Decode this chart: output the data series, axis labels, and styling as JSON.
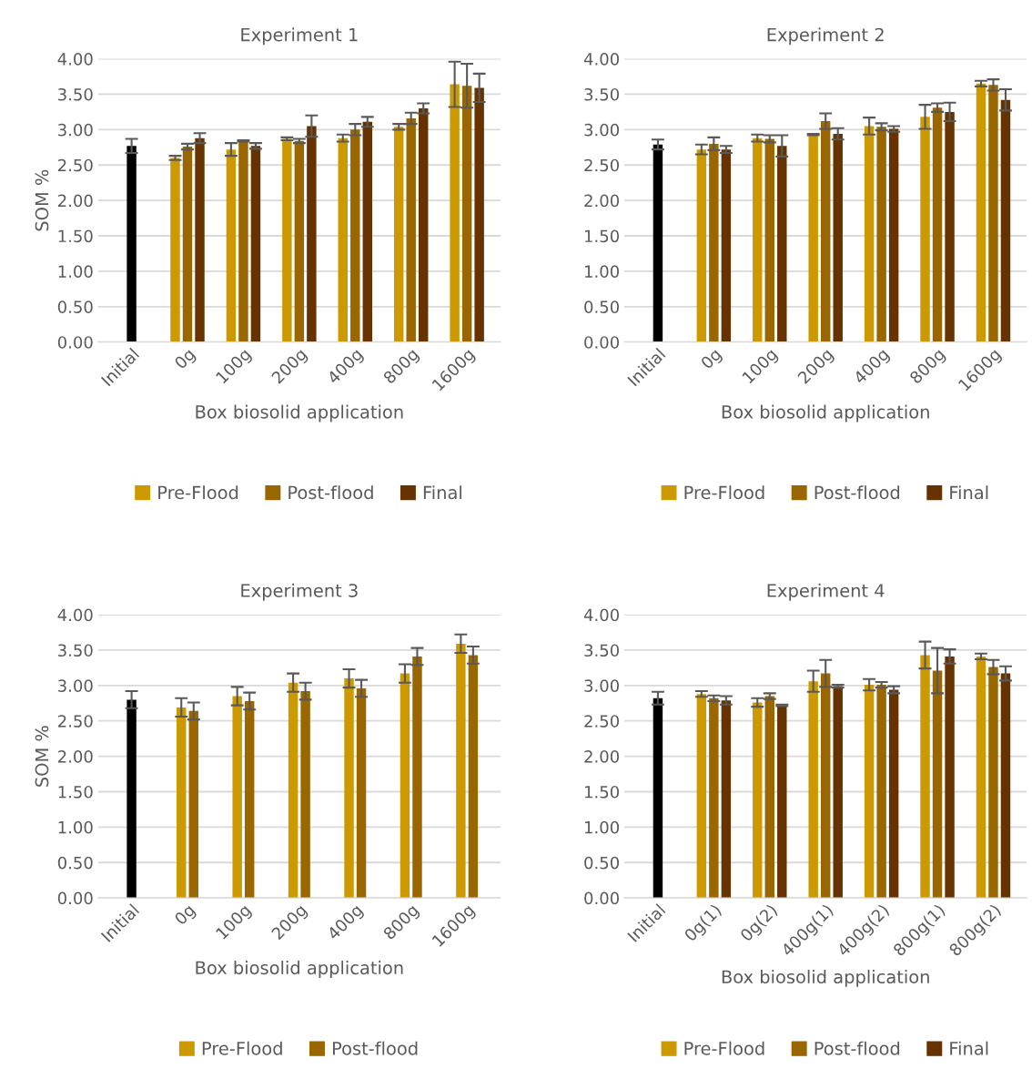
{
  "chart_data": [
    {
      "type": "bar",
      "title": "Experiment 1",
      "xlabel": "Box biosolid application",
      "ylabel": "SOM %",
      "categories": [
        "Initial",
        "0g",
        "100g",
        "200g",
        "400g",
        "800g",
        "1600g"
      ],
      "ylim": [
        0,
        4
      ],
      "yticks": [
        {
          "value": 0,
          "label": "0.00"
        },
        {
          "value": 0.5,
          "label": "0.50"
        },
        {
          "value": 1,
          "label": "1.00"
        },
        {
          "value": 1.5,
          "label": "1.50"
        },
        {
          "value": 2,
          "label": "2.00"
        },
        {
          "value": 2.5,
          "label": "2.50"
        },
        {
          "value": 3,
          "label": "3.00"
        },
        {
          "value": 3.5,
          "label": "3.50"
        },
        {
          "value": 4,
          "label": "4.00"
        }
      ],
      "grid": "y",
      "legend": "bottom",
      "series": [
        {
          "color": "#000000",
          "values": [
            2.77,
            null,
            null,
            null,
            null,
            null,
            null
          ],
          "errors": [
            0.1,
            null,
            null,
            null,
            null,
            null,
            null
          ]
        },
        {
          "name": "Pre-Flood",
          "color": "#cc9900",
          "values": [
            null,
            2.6,
            2.72,
            2.87,
            2.88,
            3.04,
            3.64
          ],
          "errors": [
            null,
            0.03,
            0.09,
            0.02,
            0.05,
            0.04,
            0.32
          ]
        },
        {
          "name": "Post-flood",
          "color": "#996600",
          "values": [
            null,
            2.76,
            2.84,
            2.84,
            3.0,
            3.16,
            3.62
          ],
          "errors": [
            null,
            0.04,
            0.01,
            0.03,
            0.08,
            0.08,
            0.31
          ]
        },
        {
          "name": "Final",
          "color": "#663300",
          "values": [
            null,
            2.88,
            2.77,
            3.05,
            3.11,
            3.3,
            3.59
          ],
          "errors": [
            null,
            0.07,
            0.04,
            0.15,
            0.07,
            0.07,
            0.2
          ]
        }
      ]
    },
    {
      "type": "bar",
      "title": "Experiment 2",
      "xlabel": "Box biosolid application",
      "categories": [
        "Initial",
        "0g",
        "100g",
        "200g",
        "400g",
        "800g",
        "1600g"
      ],
      "ylim": [
        0,
        4
      ],
      "yticks": [
        {
          "value": 0,
          "label": "0.00"
        },
        {
          "value": 0.5,
          "label": "0.50"
        },
        {
          "value": 1,
          "label": "1.00"
        },
        {
          "value": 1.5,
          "label": "1.50"
        },
        {
          "value": 2,
          "label": "2.00"
        },
        {
          "value": 2.5,
          "label": "2.50"
        },
        {
          "value": 3,
          "label": "3.00"
        },
        {
          "value": 3.5,
          "label": "3.50"
        },
        {
          "value": 4,
          "label": "4.00"
        }
      ],
      "grid": "y",
      "legend": "bottom",
      "series": [
        {
          "color": "#000000",
          "values": [
            2.79,
            null,
            null,
            null,
            null,
            null,
            null
          ],
          "errors": [
            0.07,
            null,
            null,
            null,
            null,
            null,
            null
          ]
        },
        {
          "name": "Pre-Flood",
          "color": "#cc9900",
          "values": [
            null,
            2.72,
            2.88,
            2.93,
            3.05,
            3.18,
            3.65
          ],
          "errors": [
            null,
            0.07,
            0.05,
            0.01,
            0.12,
            0.17,
            0.04
          ]
        },
        {
          "name": "Post-flood",
          "color": "#996600",
          "values": [
            null,
            2.8,
            2.87,
            3.12,
            3.04,
            3.31,
            3.63
          ],
          "errors": [
            null,
            0.09,
            0.05,
            0.11,
            0.05,
            0.06,
            0.08
          ]
        },
        {
          "name": "Final",
          "color": "#663300",
          "values": [
            null,
            2.72,
            2.77,
            2.94,
            3.01,
            3.25,
            3.42
          ],
          "errors": [
            null,
            0.05,
            0.15,
            0.08,
            0.04,
            0.13,
            0.15
          ]
        }
      ]
    },
    {
      "type": "bar",
      "title": "Experiment 3",
      "xlabel": "Box biosolid application",
      "ylabel": "SOM %",
      "categories": [
        "Initial",
        "0g",
        "100g",
        "200g",
        "400g",
        "800g",
        "1600g"
      ],
      "ylim": [
        0,
        4
      ],
      "yticks": [
        {
          "value": 0,
          "label": "0.00"
        },
        {
          "value": 0.5,
          "label": "0.50"
        },
        {
          "value": 1,
          "label": "1.00"
        },
        {
          "value": 1.5,
          "label": "1.50"
        },
        {
          "value": 2,
          "label": "2.00"
        },
        {
          "value": 2.5,
          "label": "2.50"
        },
        {
          "value": 3,
          "label": "3.00"
        },
        {
          "value": 3.5,
          "label": "3.50"
        },
        {
          "value": 4,
          "label": "4.00"
        }
      ],
      "grid": "y",
      "legend": "bottom",
      "series": [
        {
          "color": "#000000",
          "values": [
            2.8,
            null,
            null,
            null,
            null,
            null,
            null
          ],
          "errors": [
            0.12,
            null,
            null,
            null,
            null,
            null,
            null
          ]
        },
        {
          "name": "Pre-Flood",
          "color": "#cc9900",
          "values": [
            null,
            2.69,
            2.85,
            3.04,
            3.1,
            3.17,
            3.59
          ],
          "errors": [
            null,
            0.13,
            0.13,
            0.13,
            0.13,
            0.13,
            0.13
          ]
        },
        {
          "name": "Post-flood",
          "color": "#996600",
          "values": [
            null,
            2.64,
            2.78,
            2.92,
            2.96,
            3.41,
            3.43
          ],
          "errors": [
            null,
            0.12,
            0.12,
            0.12,
            0.12,
            0.12,
            0.12
          ]
        }
      ]
    },
    {
      "type": "bar",
      "title": "Experiment 4",
      "xlabel": "Box biosolid application",
      "categories": [
        "Initial",
        "0g(1)",
        "0g(2)",
        "400g(1)",
        "400g(2)",
        "800g(1)",
        "800g(2)"
      ],
      "ylim": [
        0,
        4
      ],
      "yticks": [
        {
          "value": 0,
          "label": "0.00"
        },
        {
          "value": 0.5,
          "label": "0.50"
        },
        {
          "value": 1,
          "label": "1.00"
        },
        {
          "value": 1.5,
          "label": "1.50"
        },
        {
          "value": 2,
          "label": "2.00"
        },
        {
          "value": 2.5,
          "label": "2.50"
        },
        {
          "value": 3,
          "label": "3.00"
        },
        {
          "value": 3.5,
          "label": "3.50"
        },
        {
          "value": 4,
          "label": "4.00"
        }
      ],
      "grid": "y",
      "legend": "bottom",
      "series": [
        {
          "color": "#000000",
          "values": [
            2.82,
            null,
            null,
            null,
            null,
            null,
            null
          ],
          "errors": [
            0.09,
            null,
            null,
            null,
            null,
            null,
            null
          ]
        },
        {
          "name": "Pre-Flood",
          "color": "#cc9900",
          "values": [
            null,
            2.88,
            2.76,
            3.06,
            3.01,
            3.43,
            3.41
          ],
          "errors": [
            null,
            0.04,
            0.06,
            0.15,
            0.08,
            0.19,
            0.04
          ]
        },
        {
          "name": "Post-flood",
          "color": "#996600",
          "values": [
            null,
            2.82,
            2.85,
            3.17,
            3.01,
            3.21,
            3.26
          ],
          "errors": [
            null,
            0.04,
            0.04,
            0.19,
            0.04,
            0.32,
            0.1
          ]
        },
        {
          "name": "Final",
          "color": "#663300",
          "values": [
            null,
            2.79,
            2.72,
            2.99,
            2.94,
            3.41,
            3.17
          ],
          "errors": [
            null,
            0.06,
            0.01,
            0.02,
            0.05,
            0.1,
            0.1
          ]
        }
      ]
    }
  ]
}
